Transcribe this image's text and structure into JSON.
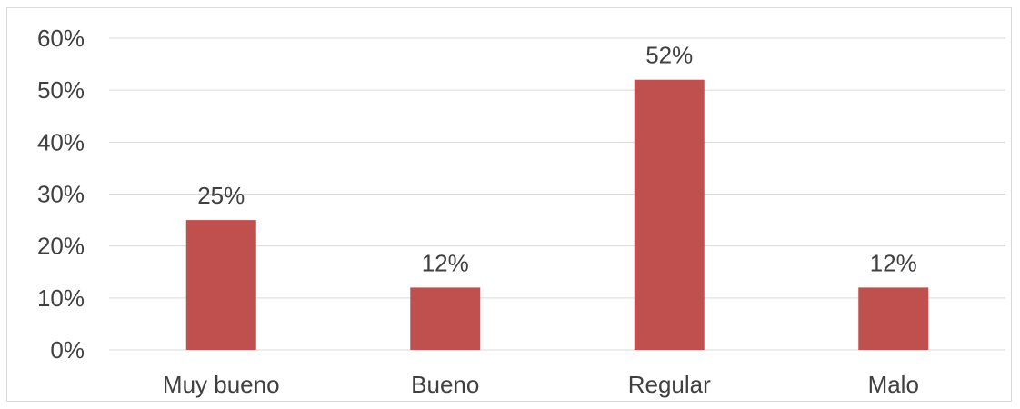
{
  "chart_data": {
    "type": "bar",
    "title": "",
    "xlabel": "",
    "ylabel": "",
    "categories": [
      "Muy bueno",
      "Bueno",
      "Regular",
      "Malo"
    ],
    "values": [
      25,
      12,
      52,
      12
    ],
    "data_labels": [
      "25%",
      "12%",
      "52%",
      "12%"
    ],
    "ylim": [
      0,
      60
    ],
    "y_ticks": [
      0,
      10,
      20,
      30,
      40,
      50,
      60
    ],
    "y_tick_labels": [
      "0%",
      "10%",
      "20%",
      "30%",
      "40%",
      "50%",
      "60%"
    ],
    "grid": true,
    "legend": "none",
    "bar_color": "#c0504d"
  }
}
